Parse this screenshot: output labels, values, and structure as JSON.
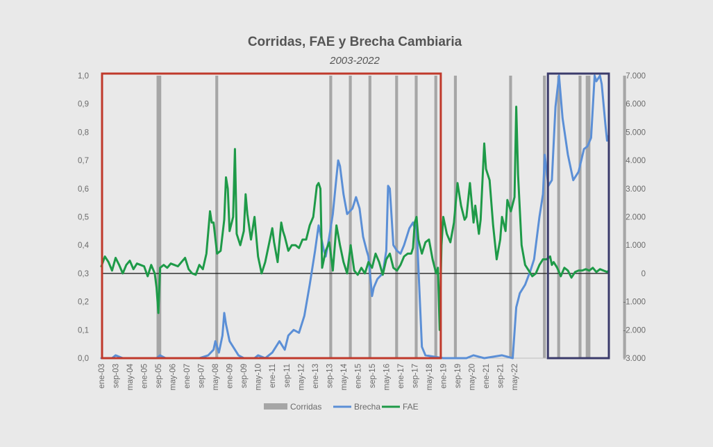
{
  "chart_data": {
    "type": "line",
    "title": "Corridas, FAE y Brecha Cambiaria",
    "subtitle": "2003-2022",
    "x_tick_labels": [
      "ene-03",
      "sep-03",
      "may-04",
      "ene-05",
      "sep-05",
      "may-06",
      "ene-07",
      "sep-07",
      "may-08",
      "ene-09",
      "sep-09",
      "may-10",
      "ene-11",
      "sep-11",
      "may-12",
      "ene-13",
      "sep-13",
      "may-14",
      "ene-15",
      "sep-15",
      "may-16",
      "ene-17",
      "sep-17",
      "may-18",
      "ene-19",
      "sep-19",
      "may-20",
      "ene-21",
      "sep-21",
      "may-22"
    ],
    "y_left": {
      "ticks": [
        "0,0",
        "0,1",
        "0,2",
        "0,3",
        "0,4",
        "0,5",
        "0,6",
        "0,7",
        "0,8",
        "0,9",
        "1,0"
      ],
      "ylim": [
        0,
        1
      ]
    },
    "y_right": {
      "ticks": [
        "-3.000",
        "-2.000",
        "-1.000",
        "0",
        "1.000",
        "2.000",
        "3.000",
        "4.000",
        "5.000",
        "6.000",
        "7.000"
      ],
      "ylim": [
        -3000,
        7000
      ]
    },
    "corridas_months": [
      [
        31,
        33
      ],
      [
        64,
        65
      ],
      [
        128,
        129
      ],
      [
        139,
        140
      ],
      [
        150,
        151
      ],
      [
        165,
        166
      ],
      [
        176,
        177
      ],
      [
        187,
        188
      ],
      [
        198,
        199
      ],
      [
        229,
        230
      ],
      [
        248,
        249
      ],
      [
        256,
        257
      ],
      [
        268,
        269
      ],
      [
        272,
        274
      ],
      [
        293,
        294
      ]
    ],
    "series": [
      {
        "name": "Corridas",
        "axis": "left",
        "color": "#a6a6a6"
      },
      {
        "name": "Brecha",
        "axis": "left",
        "color": "#5b8fd6",
        "points": [
          [
            0,
            0
          ],
          [
            6,
            0
          ],
          [
            8,
            0.01
          ],
          [
            12,
            0
          ],
          [
            25,
            0
          ],
          [
            27,
            0
          ],
          [
            31,
            0
          ],
          [
            33,
            0.01
          ],
          [
            36,
            0
          ],
          [
            55,
            0
          ],
          [
            60,
            0.01
          ],
          [
            63,
            0.03
          ],
          [
            64,
            0.06
          ],
          [
            66,
            0.02
          ],
          [
            68,
            0.08
          ],
          [
            69,
            0.16
          ],
          [
            70,
            0.12
          ],
          [
            72,
            0.06
          ],
          [
            75,
            0.03
          ],
          [
            77,
            0.01
          ],
          [
            80,
            0
          ],
          [
            86,
            0
          ],
          [
            88,
            0.01
          ],
          [
            92,
            0
          ],
          [
            96,
            0.02
          ],
          [
            100,
            0.06
          ],
          [
            103,
            0.03
          ],
          [
            105,
            0.08
          ],
          [
            108,
            0.1
          ],
          [
            111,
            0.09
          ],
          [
            114,
            0.15
          ],
          [
            117,
            0.26
          ],
          [
            120,
            0.38
          ],
          [
            122,
            0.47
          ],
          [
            123,
            0.44
          ],
          [
            125,
            0.38
          ],
          [
            126,
            0.36
          ],
          [
            128,
            0.43
          ],
          [
            130,
            0.51
          ],
          [
            132,
            0.64
          ],
          [
            133,
            0.7
          ],
          [
            134,
            0.68
          ],
          [
            136,
            0.58
          ],
          [
            138,
            0.51
          ],
          [
            141,
            0.53
          ],
          [
            143,
            0.57
          ],
          [
            145,
            0.53
          ],
          [
            147,
            0.43
          ],
          [
            149,
            0.38
          ],
          [
            150,
            0.36
          ],
          [
            152,
            0.22
          ],
          [
            153,
            0.25
          ],
          [
            155,
            0.28
          ],
          [
            158,
            0.3
          ],
          [
            160,
            0.38
          ],
          [
            161,
            0.61
          ],
          [
            162,
            0.6
          ],
          [
            164,
            0.4
          ],
          [
            166,
            0.38
          ],
          [
            168,
            0.37
          ],
          [
            170,
            0.4
          ],
          [
            173,
            0.46
          ],
          [
            175,
            0.48
          ],
          [
            176,
            0.46
          ],
          [
            177,
            0.47
          ],
          [
            180,
            0.04
          ],
          [
            182,
            0.01
          ],
          [
            192,
            0
          ],
          [
            205,
            0
          ],
          [
            209,
            0.01
          ],
          [
            215,
            0
          ],
          [
            225,
            0.01
          ],
          [
            231,
            0
          ],
          [
            233,
            0.18
          ],
          [
            235,
            0.23
          ],
          [
            238,
            0.26
          ],
          [
            241,
            0.31
          ],
          [
            243,
            0.35
          ],
          [
            246,
            0.5
          ],
          [
            248,
            0.58
          ],
          [
            249,
            0.72
          ],
          [
            251,
            0.61
          ],
          [
            253,
            0.63
          ],
          [
            255,
            0.89
          ],
          [
            257,
            1.0
          ],
          [
            259,
            0.85
          ],
          [
            262,
            0.72
          ],
          [
            265,
            0.63
          ],
          [
            268,
            0.66
          ],
          [
            271,
            0.74
          ],
          [
            273,
            0.75
          ],
          [
            275,
            0.78
          ],
          [
            277,
            1.0
          ],
          [
            278,
            0.98
          ],
          [
            280,
            1.0
          ],
          [
            281,
            0.97
          ],
          [
            283,
            0.83
          ],
          [
            284,
            0.77
          ],
          [
            285,
            0.79
          ]
        ]
      },
      {
        "name": "FAE",
        "axis": "right",
        "color": "#1e9a48",
        "points": [
          [
            0,
            250
          ],
          [
            2,
            600
          ],
          [
            4,
            400
          ],
          [
            6,
            100
          ],
          [
            8,
            550
          ],
          [
            10,
            300
          ],
          [
            12,
            0
          ],
          [
            14,
            300
          ],
          [
            16,
            450
          ],
          [
            18,
            150
          ],
          [
            20,
            350
          ],
          [
            22,
            300
          ],
          [
            24,
            250
          ],
          [
            26,
            -100
          ],
          [
            28,
            300
          ],
          [
            30,
            0
          ],
          [
            31,
            -500
          ],
          [
            32,
            -1400
          ],
          [
            33,
            200
          ],
          [
            35,
            300
          ],
          [
            37,
            200
          ],
          [
            39,
            350
          ],
          [
            41,
            300
          ],
          [
            43,
            250
          ],
          [
            45,
            400
          ],
          [
            47,
            550
          ],
          [
            49,
            150
          ],
          [
            51,
            0
          ],
          [
            53,
            -50
          ],
          [
            55,
            300
          ],
          [
            57,
            150
          ],
          [
            59,
            700
          ],
          [
            61,
            2200
          ],
          [
            62,
            1800
          ],
          [
            63,
            1800
          ],
          [
            65,
            700
          ],
          [
            67,
            800
          ],
          [
            69,
            1900
          ],
          [
            70,
            3400
          ],
          [
            71,
            3000
          ],
          [
            72,
            1500
          ],
          [
            74,
            2000
          ],
          [
            75,
            4400
          ],
          [
            76,
            1400
          ],
          [
            78,
            1000
          ],
          [
            80,
            1500
          ],
          [
            81,
            2800
          ],
          [
            82,
            2100
          ],
          [
            84,
            1200
          ],
          [
            86,
            2000
          ],
          [
            88,
            600
          ],
          [
            90,
            0
          ],
          [
            92,
            400
          ],
          [
            94,
            1000
          ],
          [
            96,
            1600
          ],
          [
            97,
            1100
          ],
          [
            99,
            400
          ],
          [
            101,
            1800
          ],
          [
            102,
            1500
          ],
          [
            103,
            1300
          ],
          [
            105,
            800
          ],
          [
            107,
            1000
          ],
          [
            109,
            1000
          ],
          [
            111,
            900
          ],
          [
            113,
            1200
          ],
          [
            115,
            1200
          ],
          [
            117,
            1700
          ],
          [
            119,
            2000
          ],
          [
            121,
            3100
          ],
          [
            122,
            3200
          ],
          [
            123,
            3000
          ],
          [
            124,
            200
          ],
          [
            126,
            800
          ],
          [
            128,
            1100
          ],
          [
            129,
            600
          ],
          [
            130,
            100
          ],
          [
            132,
            1700
          ],
          [
            134,
            1000
          ],
          [
            136,
            400
          ],
          [
            138,
            0
          ],
          [
            140,
            1000
          ],
          [
            142,
            100
          ],
          [
            144,
            -50
          ],
          [
            146,
            200
          ],
          [
            148,
            0
          ],
          [
            150,
            400
          ],
          [
            152,
            200
          ],
          [
            154,
            700
          ],
          [
            156,
            400
          ],
          [
            158,
            -50
          ],
          [
            160,
            500
          ],
          [
            162,
            700
          ],
          [
            164,
            200
          ],
          [
            166,
            100
          ],
          [
            168,
            300
          ],
          [
            170,
            600
          ],
          [
            172,
            700
          ],
          [
            174,
            700
          ],
          [
            175,
            900
          ],
          [
            176,
            1800
          ],
          [
            177,
            2000
          ],
          [
            178,
            1200
          ],
          [
            180,
            700
          ],
          [
            182,
            1100
          ],
          [
            184,
            1200
          ],
          [
            186,
            500
          ],
          [
            188,
            0
          ],
          [
            189,
            200
          ],
          [
            190,
            -2000
          ],
          [
            191,
            1000
          ],
          [
            192,
            2000
          ],
          [
            194,
            1400
          ],
          [
            196,
            1100
          ],
          [
            198,
            1800
          ],
          [
            200,
            3200
          ],
          [
            202,
            2400
          ],
          [
            204,
            1900
          ],
          [
            205,
            2000
          ],
          [
            207,
            3200
          ],
          [
            209,
            1800
          ],
          [
            210,
            2400
          ],
          [
            212,
            1400
          ],
          [
            213,
            1900
          ],
          [
            215,
            4600
          ],
          [
            216,
            3700
          ],
          [
            218,
            3300
          ],
          [
            220,
            1700
          ],
          [
            222,
            500
          ],
          [
            224,
            1200
          ],
          [
            225,
            2000
          ],
          [
            227,
            1500
          ],
          [
            228,
            2600
          ],
          [
            230,
            2200
          ],
          [
            232,
            2700
          ],
          [
            233,
            5900
          ],
          [
            234,
            3500
          ],
          [
            236,
            1000
          ],
          [
            238,
            300
          ],
          [
            240,
            100
          ],
          [
            242,
            -100
          ],
          [
            244,
            0
          ],
          [
            246,
            300
          ],
          [
            248,
            500
          ],
          [
            250,
            500
          ],
          [
            252,
            600
          ],
          [
            253,
            300
          ],
          [
            254,
            400
          ],
          [
            256,
            200
          ],
          [
            258,
            -100
          ],
          [
            260,
            200
          ],
          [
            262,
            100
          ],
          [
            264,
            -150
          ],
          [
            266,
            50
          ],
          [
            268,
            100
          ],
          [
            270,
            100
          ],
          [
            272,
            150
          ],
          [
            274,
            100
          ],
          [
            276,
            200
          ],
          [
            278,
            50
          ],
          [
            280,
            150
          ],
          [
            282,
            100
          ],
          [
            284,
            50
          ],
          [
            285,
            100
          ]
        ]
      }
    ],
    "reference_line": {
      "axis": "right",
      "value": 0,
      "color": "#222222"
    },
    "highlight_boxes": [
      {
        "from_month": 0,
        "to_month": 191,
        "color": "#c0392b"
      },
      {
        "from_month": 250,
        "to_month": 285,
        "color": "#3b3b6b"
      }
    ],
    "legend": {
      "position": "bottom",
      "entries": [
        "Corridas",
        "Brecha",
        "FAE"
      ]
    },
    "grid": false
  }
}
